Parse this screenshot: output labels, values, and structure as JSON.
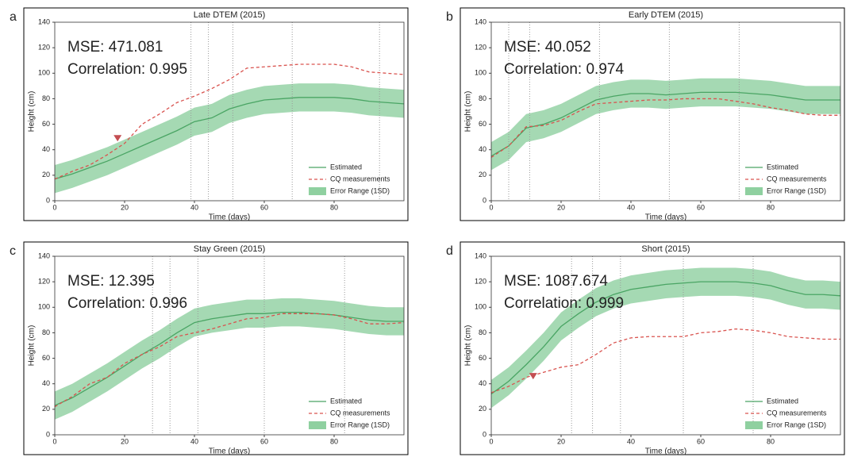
{
  "chart_data": [
    {
      "type": "line",
      "panel": "a",
      "title": "Late DTEM (2015)",
      "annotations": [
        "MSE: 471.081",
        "Correlation: 0.995"
      ],
      "xlabel": "Time (days)",
      "ylabel": "Height (cm)",
      "x": [
        0,
        5,
        10,
        15,
        20,
        25,
        30,
        35,
        40,
        45,
        50,
        55,
        60,
        65,
        70,
        75,
        80,
        85,
        90,
        95,
        100
      ],
      "xlim": [
        0,
        100
      ],
      "ylim": [
        0,
        140
      ],
      "xticks": [
        0,
        20,
        40,
        60,
        80
      ],
      "yticks": [
        0,
        20,
        40,
        60,
        80,
        100,
        120,
        140
      ],
      "vlines": [
        39,
        44,
        51,
        68,
        93
      ],
      "marker": {
        "x": 18,
        "y": 49,
        "color": "#c44e52"
      },
      "series": [
        {
          "name": "Estimated",
          "color": "#4aa564",
          "style": "solid",
          "values": [
            17,
            21,
            26,
            31,
            37,
            43,
            49,
            55,
            62,
            65,
            72,
            76,
            79,
            80,
            81,
            81,
            81,
            80,
            78,
            77,
            76
          ]
        },
        {
          "name": "CQ measurements",
          "color": "#d9534f",
          "style": "dashed",
          "values": [
            17,
            23,
            28,
            36,
            45,
            60,
            68,
            77,
            82,
            88,
            95,
            104,
            105,
            106,
            107,
            107,
            107,
            105,
            101,
            100,
            99
          ]
        },
        {
          "name": "Error Range (1SD)",
          "color": "#8fd0a0",
          "lower": [
            6,
            10,
            15,
            20,
            26,
            32,
            38,
            44,
            51,
            54,
            61,
            65,
            68,
            69,
            70,
            70,
            70,
            69,
            67,
            66,
            65
          ],
          "upper": [
            28,
            32,
            37,
            42,
            48,
            54,
            60,
            66,
            73,
            76,
            83,
            87,
            90,
            91,
            92,
            92,
            92,
            91,
            89,
            88,
            87
          ]
        }
      ]
    },
    {
      "type": "line",
      "panel": "b",
      "title": "Early DTEM (2015)",
      "annotations": [
        "MSE: 40.052",
        "Correlation: 0.974"
      ],
      "xlabel": "Time (days)",
      "ylabel": "Height (cm)",
      "x": [
        0,
        5,
        10,
        15,
        20,
        25,
        30,
        35,
        40,
        45,
        50,
        55,
        60,
        65,
        70,
        75,
        80,
        85,
        90,
        95,
        100
      ],
      "xlim": [
        0,
        100
      ],
      "ylim": [
        0,
        140
      ],
      "xticks": [
        0,
        20,
        40,
        60,
        80
      ],
      "yticks": [
        0,
        20,
        40,
        60,
        80,
        100,
        120,
        140
      ],
      "vlines": [
        5,
        11,
        31,
        51,
        71
      ],
      "series": [
        {
          "name": "Estimated",
          "color": "#4aa564",
          "style": "solid",
          "values": [
            35,
            43,
            57,
            60,
            65,
            72,
            79,
            82,
            84,
            84,
            83,
            84,
            85,
            85,
            85,
            84,
            83,
            81,
            79,
            79,
            79
          ]
        },
        {
          "name": "CQ measurements",
          "color": "#d9534f",
          "style": "dashed",
          "values": [
            34,
            43,
            58,
            59,
            63,
            70,
            76,
            77,
            78,
            79,
            79,
            80,
            80,
            80,
            78,
            76,
            73,
            71,
            68,
            67,
            67
          ]
        },
        {
          "name": "Error Range (1SD)",
          "color": "#8fd0a0",
          "lower": [
            24,
            32,
            46,
            49,
            54,
            61,
            68,
            71,
            73,
            73,
            72,
            73,
            74,
            74,
            74,
            73,
            72,
            70,
            68,
            68,
            68
          ],
          "upper": [
            46,
            54,
            68,
            71,
            76,
            83,
            90,
            93,
            95,
            95,
            94,
            95,
            96,
            96,
            96,
            95,
            94,
            92,
            90,
            90,
            90
          ]
        }
      ]
    },
    {
      "type": "line",
      "panel": "c",
      "title": "Stay Green (2015)",
      "annotations": [
        "MSE: 12.395",
        "Correlation: 0.996"
      ],
      "xlabel": "Time (days)",
      "ylabel": "Height (cm)",
      "x": [
        0,
        5,
        10,
        15,
        20,
        25,
        30,
        35,
        40,
        45,
        50,
        55,
        60,
        65,
        70,
        75,
        80,
        85,
        90,
        95,
        100
      ],
      "xlim": [
        0,
        100
      ],
      "ylim": [
        0,
        140
      ],
      "xticks": [
        0,
        20,
        40,
        60,
        80
      ],
      "yticks": [
        0,
        20,
        40,
        60,
        80,
        100,
        120,
        140
      ],
      "vlines": [
        28,
        33,
        41,
        60,
        83
      ],
      "series": [
        {
          "name": "Estimated",
          "color": "#4aa564",
          "style": "solid",
          "values": [
            23,
            29,
            37,
            45,
            54,
            63,
            71,
            80,
            88,
            91,
            93,
            95,
            95,
            96,
            96,
            95,
            94,
            92,
            90,
            89,
            89
          ]
        },
        {
          "name": "CQ measurements",
          "color": "#d9534f",
          "style": "dashed",
          "values": [
            22,
            30,
            40,
            45,
            56,
            63,
            69,
            77,
            80,
            83,
            87,
            91,
            92,
            95,
            95,
            95,
            94,
            91,
            87,
            87,
            88
          ]
        },
        {
          "name": "Error Range (1SD)",
          "color": "#8fd0a0",
          "lower": [
            12,
            18,
            26,
            34,
            43,
            52,
            60,
            69,
            77,
            80,
            82,
            84,
            84,
            85,
            85,
            84,
            83,
            81,
            79,
            78,
            78
          ],
          "upper": [
            34,
            40,
            48,
            56,
            65,
            74,
            82,
            91,
            99,
            102,
            104,
            106,
            106,
            107,
            107,
            106,
            105,
            103,
            101,
            100,
            100
          ]
        }
      ]
    },
    {
      "type": "line",
      "panel": "d",
      "title": "Short (2015)",
      "annotations": [
        "MSE: 1087.674",
        "Correlation: 0.999"
      ],
      "xlabel": "Time (days)",
      "ylabel": "Height (cm)",
      "x": [
        0,
        5,
        10,
        15,
        20,
        25,
        30,
        35,
        40,
        45,
        50,
        55,
        60,
        65,
        70,
        75,
        80,
        85,
        90,
        95,
        100
      ],
      "xlim": [
        0,
        100
      ],
      "ylim": [
        0,
        140
      ],
      "xticks": [
        0,
        20,
        40,
        60,
        80
      ],
      "yticks": [
        0,
        20,
        40,
        60,
        80,
        100,
        120,
        140
      ],
      "vlines": [
        23,
        29,
        37,
        55,
        75
      ],
      "marker": {
        "x": 12,
        "y": 46,
        "color": "#c44e52"
      },
      "series": [
        {
          "name": "Estimated",
          "color": "#4aa564",
          "style": "solid",
          "values": [
            32,
            42,
            55,
            69,
            85,
            95,
            104,
            110,
            114,
            116,
            118,
            119,
            120,
            120,
            120,
            119,
            117,
            113,
            110,
            110,
            109
          ]
        },
        {
          "name": "CQ measurements",
          "color": "#d9534f",
          "style": "dashed",
          "values": [
            33,
            38,
            45,
            49,
            53,
            55,
            63,
            72,
            76,
            77,
            77,
            77,
            80,
            81,
            83,
            82,
            80,
            77,
            76,
            75,
            75
          ]
        },
        {
          "name": "Error Range (1SD)",
          "color": "#8fd0a0",
          "lower": [
            21,
            31,
            44,
            58,
            74,
            84,
            93,
            99,
            103,
            105,
            107,
            108,
            109,
            109,
            109,
            108,
            106,
            102,
            99,
            99,
            98
          ],
          "upper": [
            43,
            53,
            66,
            80,
            96,
            106,
            115,
            121,
            125,
            127,
            129,
            130,
            131,
            131,
            131,
            130,
            128,
            124,
            121,
            121,
            120
          ]
        }
      ]
    }
  ]
}
